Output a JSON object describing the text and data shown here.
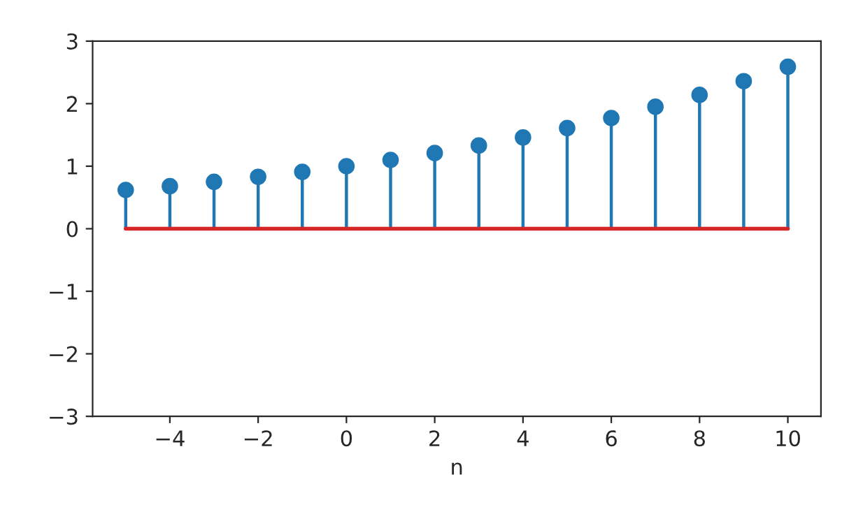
{
  "chart_data": {
    "type": "lollipop",
    "xlabel": "n",
    "x": [
      -5,
      -4,
      -3,
      -2,
      -1,
      0,
      1,
      2,
      3,
      4,
      5,
      6,
      7,
      8,
      9,
      10
    ],
    "series": [
      {
        "color": "#1f77b4",
        "values": [
          0.62,
          0.68,
          0.75,
          0.83,
          0.91,
          1.0,
          1.1,
          1.21,
          1.33,
          1.46,
          1.61,
          1.77,
          1.95,
          2.14,
          2.36,
          2.59
        ]
      }
    ],
    "ref_lines": [
      {
        "axis": "y",
        "value": 0,
        "color": "#d62728"
      }
    ],
    "marker": "circle",
    "xlim": [
      -5.75,
      10.75
    ],
    "xticks": [
      {
        "value": -4,
        "label": "−4"
      },
      {
        "value": -2,
        "label": "−2"
      },
      0,
      2,
      4,
      6,
      8,
      10
    ],
    "ylim": [
      -3,
      3
    ],
    "yticks": [
      {
        "value": -3,
        "label": "−3"
      },
      {
        "value": -2,
        "label": "−2"
      },
      {
        "value": -1,
        "label": "−1"
      },
      0,
      1,
      2,
      3
    ]
  }
}
